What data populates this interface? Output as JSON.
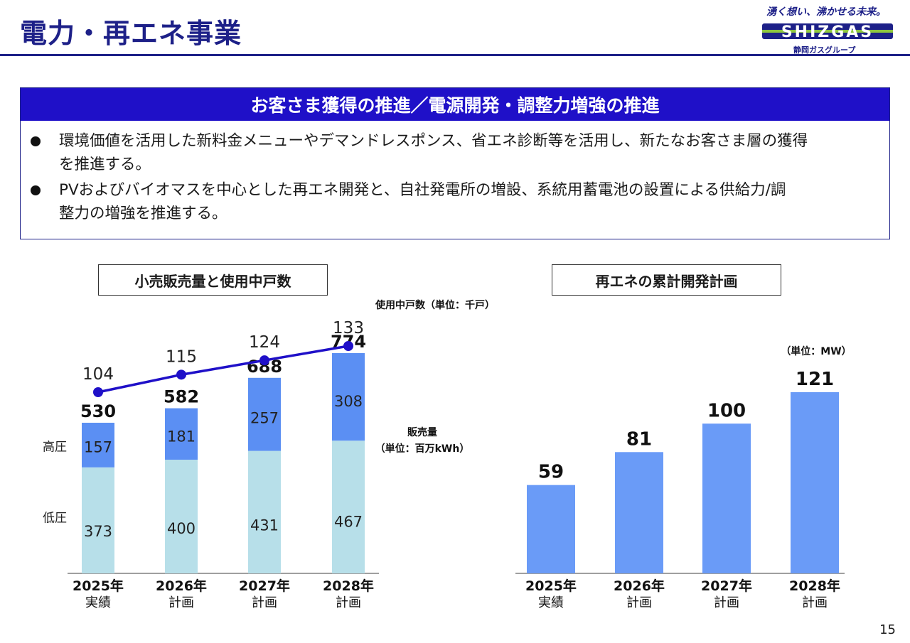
{
  "page": {
    "title": "電力・再エネ事業",
    "page_number": "15"
  },
  "logo": {
    "tagline": "湧く想い、沸かせる未来。",
    "brand": "SHIZGAS",
    "subtitle": "静岡ガスグループ",
    "colors": {
      "primary": "#1d2088",
      "stripe": "#8dc63f"
    }
  },
  "panel": {
    "header": "お客さま獲得の推進／電源開発・調整力増強の推進",
    "bullets": [
      {
        "line1": "環境価値を活用した新料金メニューやデマンドレスポンス、省エネ診断等を活用し、新たなお客さま層の獲得",
        "line2": "を推進する。"
      },
      {
        "line1": "PVおよびバイオマスを中心とした再エネ開発と、自社発電所の増設、系統用蓄電池の設置による供給力/調",
        "line2": "整力の増強を推進する。"
      }
    ],
    "colors": {
      "header_bg": "#1f10c8",
      "border": "#1d2088"
    }
  },
  "chart_data": [
    {
      "type": "bar",
      "subtype": "stacked-bar-with-line",
      "title": "小売販売量と使用中戸数",
      "categories": [
        {
          "year": "2025年",
          "sub": "実績"
        },
        {
          "year": "2026年",
          "sub": "計画"
        },
        {
          "year": "2027年",
          "sub": "計画"
        },
        {
          "year": "2028年",
          "sub": "計画"
        }
      ],
      "series": [
        {
          "name": "低圧",
          "values": [
            373,
            400,
            431,
            467
          ],
          "color": "#b7dfe9"
        },
        {
          "name": "高圧",
          "values": [
            157,
            181,
            257,
            308
          ],
          "color": "#5b8ff3"
        }
      ],
      "totals": [
        530,
        582,
        688,
        774
      ],
      "bar_unit_label_line1": "販売量",
      "bar_unit_label_line2": "（単位：百万kWh）",
      "line_series": {
        "name": "使用中戸数",
        "values": [
          104,
          115,
          124,
          133
        ],
        "color": "#1f10c8",
        "unit_label": "使用中戸数（単位：千戸）"
      },
      "ylim": [
        0,
        800
      ]
    },
    {
      "type": "bar",
      "title": "再エネの累計開発計画",
      "categories": [
        {
          "year": "2025年",
          "sub": "実績"
        },
        {
          "year": "2026年",
          "sub": "計画"
        },
        {
          "year": "2027年",
          "sub": "計画"
        },
        {
          "year": "2028年",
          "sub": "計画"
        }
      ],
      "values": [
        59,
        81,
        100,
        121
      ],
      "color": "#6a9bf7",
      "unit_label": "（単位：MW）",
      "ylim": [
        0,
        140
      ]
    }
  ]
}
